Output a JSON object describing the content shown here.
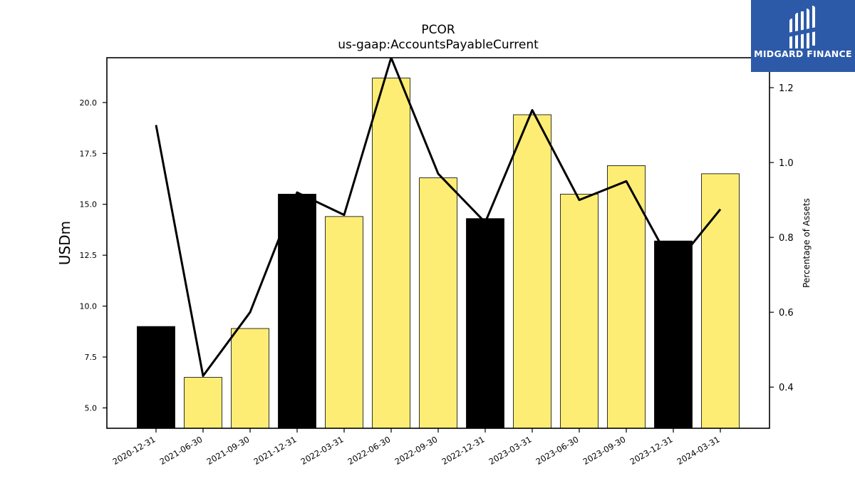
{
  "chart_data": {
    "type": "bar",
    "title": "PCOR",
    "subtitle": "us-gaap:AccountsPayableCurrent",
    "ylabel": "USDm",
    "y2label": "Percentage of Assets",
    "ylim": [
      4.0,
      22.2
    ],
    "y2lim": [
      0.29,
      1.28
    ],
    "yticks": [
      "5.0",
      "7.5",
      "10.0",
      "12.5",
      "15.0",
      "17.5",
      "20.0"
    ],
    "y2ticks": [
      "0.4",
      "0.6",
      "0.8",
      "1.0",
      "1.2"
    ],
    "categories": [
      "2020-12-31",
      "2021-06-30",
      "2021-09-30",
      "2021-12-31",
      "2022-03-31",
      "2022-06-30",
      "2022-09-30",
      "2022-12-31",
      "2023-03-31",
      "2023-06-30",
      "2023-09-30",
      "2023-12-31",
      "2024-03-31"
    ],
    "series": [
      {
        "axis": "left",
        "kind": "bar",
        "values": [
          9.0,
          6.5,
          8.9,
          15.5,
          14.4,
          21.2,
          16.3,
          14.3,
          19.4,
          15.5,
          16.9,
          13.2,
          16.5
        ],
        "colors": [
          "#000000",
          "#fded74",
          "#fded74",
          "#000000",
          "#fded74",
          "#fded74",
          "#fded74",
          "#000000",
          "#fded74",
          "#fded74",
          "#fded74",
          "#000000",
          "#fded74"
        ]
      },
      {
        "axis": "right",
        "kind": "line",
        "values": [
          1.1,
          0.43,
          0.6,
          0.92,
          0.86,
          1.28,
          0.97,
          0.84,
          1.14,
          0.9,
          0.95,
          0.72,
          0.875
        ],
        "color": "#000000"
      }
    ],
    "grid": false,
    "legend": "none"
  },
  "logo": {
    "text": "MIDGARD FINANCE",
    "color": "#2d5aa8"
  }
}
